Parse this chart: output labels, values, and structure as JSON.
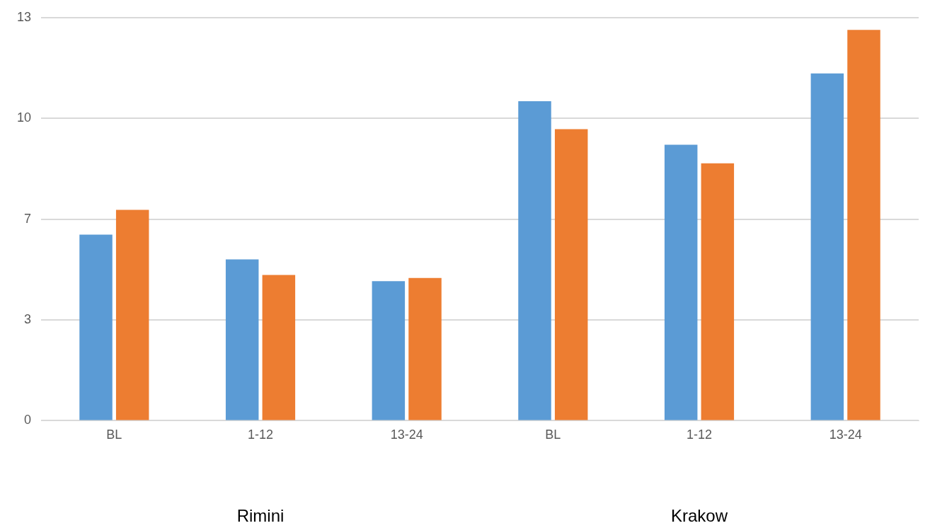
{
  "chart_data": {
    "type": "bar",
    "categories": [
      "BL",
      "1-12",
      "13-24",
      "BL",
      "1-12",
      "13-24"
    ],
    "series": [
      {
        "color": "#5b9bd5",
        "values": [
          6.0,
          5.2,
          4.5,
          10.3,
          8.9,
          11.2
        ]
      },
      {
        "color": "#ed7d31",
        "values": [
          6.8,
          4.7,
          4.6,
          9.4,
          8.3,
          12.6
        ]
      }
    ],
    "ylim": [
      0,
      13
    ],
    "yticks": [
      0,
      {
        "value": 3.25,
        "label": "3"
      },
      {
        "value": 6.5,
        "label": "7"
      },
      {
        "value": 9.75,
        "label": "10"
      },
      13
    ],
    "grid": "y",
    "legend": false,
    "annotations": [
      "Rimini",
      "Krakow"
    ]
  }
}
